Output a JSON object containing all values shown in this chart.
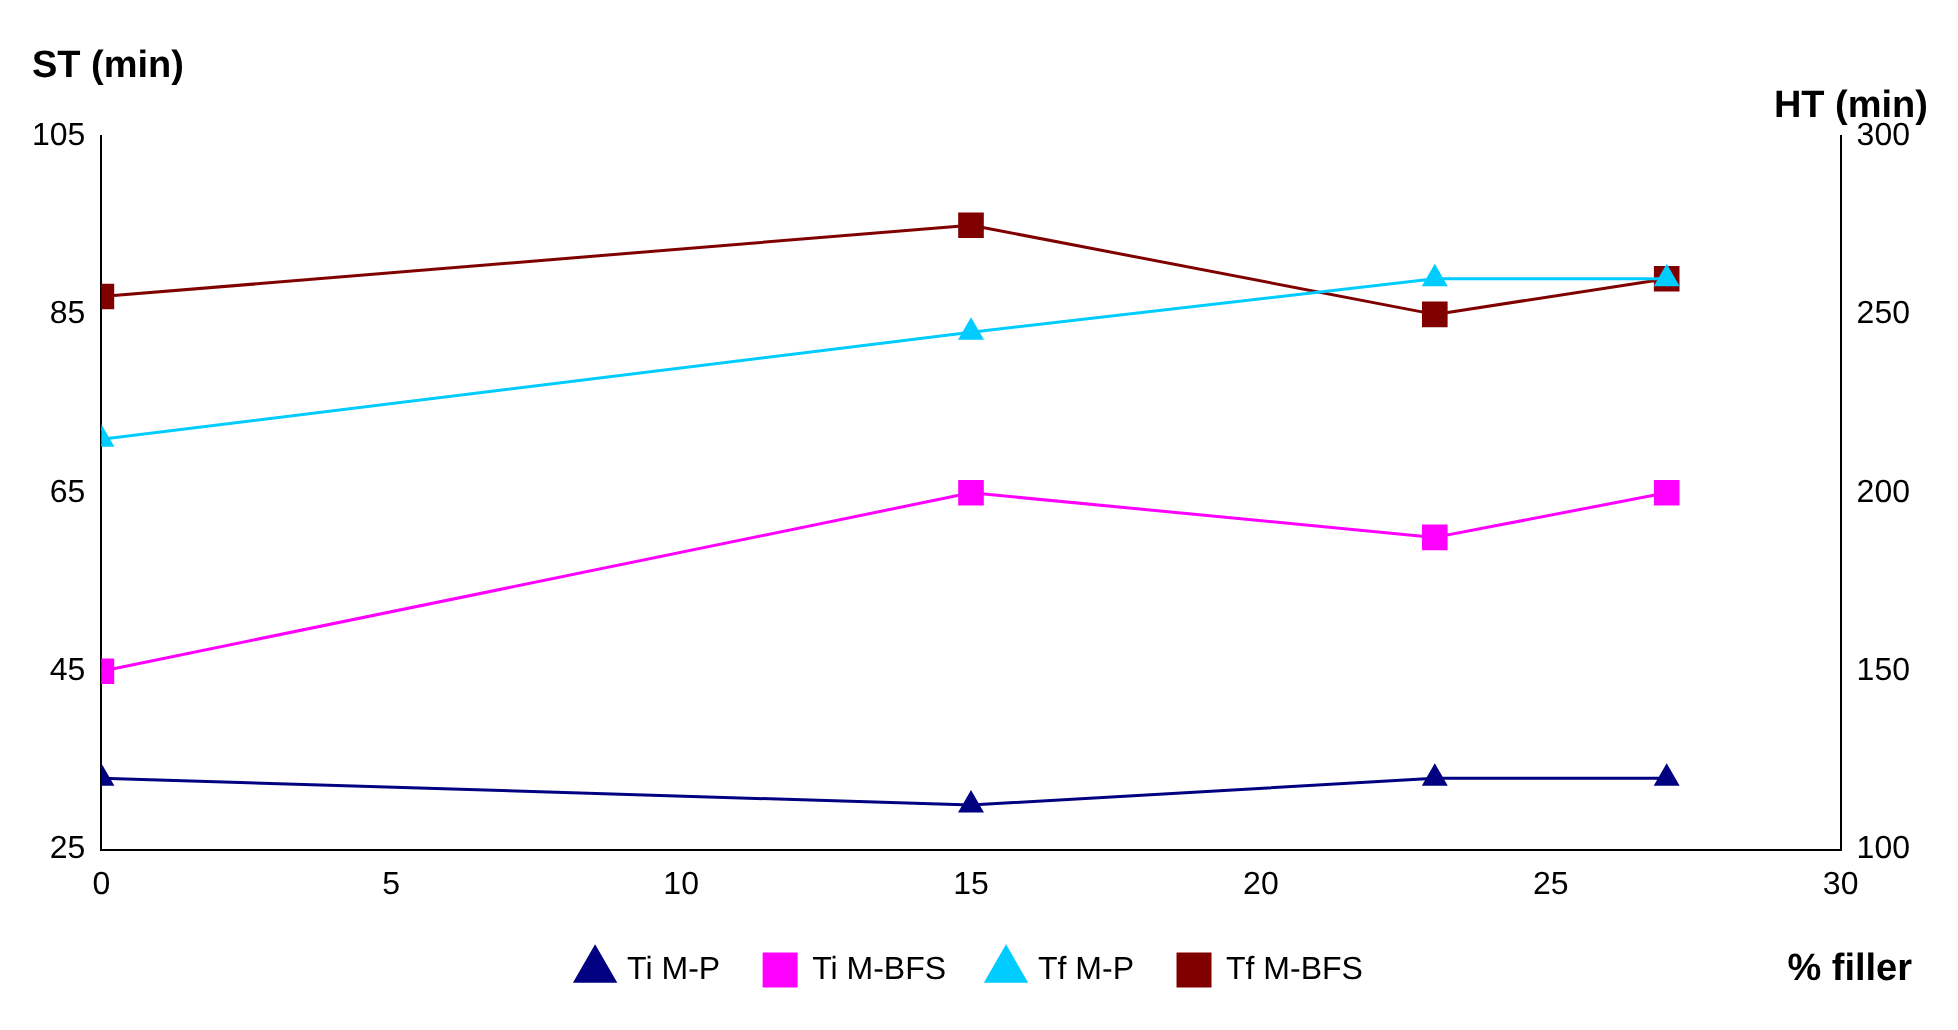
{
  "chart_data": {
    "type": "line",
    "xlabel": "% filler",
    "ylabel": "ST (min)",
    "y2label": "HT (min)",
    "x": [
      0,
      15,
      23,
      27
    ],
    "xlim": [
      0,
      30
    ],
    "xticks": [
      0,
      5,
      10,
      15,
      20,
      25,
      30
    ],
    "ylim": [
      25,
      105
    ],
    "yticks": [
      25,
      45,
      65,
      85,
      105
    ],
    "y2lim": [
      100,
      300
    ],
    "y2ticks": [
      100,
      150,
      200,
      250,
      300
    ],
    "grid": false,
    "legend": "bottom",
    "line_style": "solid",
    "series": [
      {
        "name": "Ti M-P",
        "color": "#000080",
        "values": [
          33,
          30,
          33,
          33
        ],
        "marker": "triangle"
      },
      {
        "name": "Ti M-BFS",
        "color": "#ff00ff",
        "values": [
          45,
          65,
          60,
          65
        ],
        "marker": "square"
      },
      {
        "name": "Tf M-P",
        "color": "#00ccff",
        "values": [
          215,
          245,
          260,
          260
        ],
        "marker": "triangle",
        "axis": "y2"
      },
      {
        "name": "Tf M-BFS",
        "color": "#800000",
        "values": [
          255,
          275,
          250,
          260
        ],
        "marker": "square",
        "axis": "y2"
      }
    ]
  }
}
